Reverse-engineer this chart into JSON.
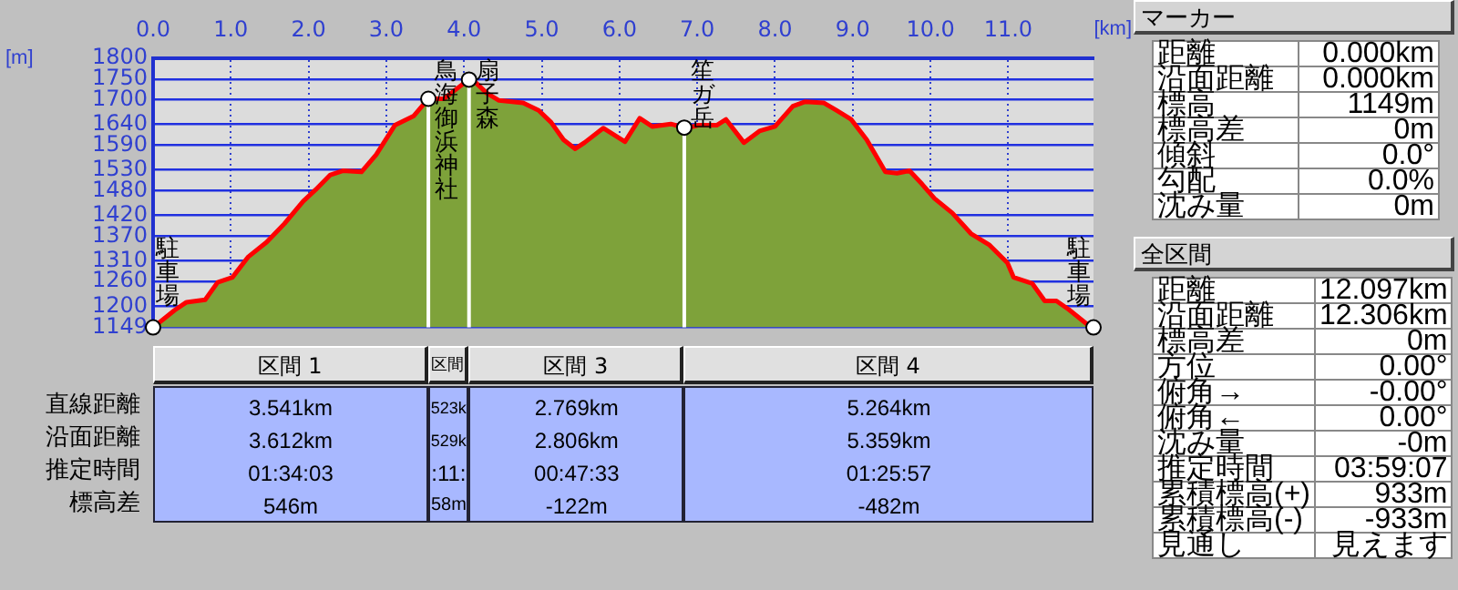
{
  "chart_data": [
    {
      "type": "area",
      "xlabel": "[km]",
      "ylabel": "[m]",
      "color": "#7ea23a",
      "x": [
        0,
        0.28,
        0.43,
        0.67,
        0.83,
        1.02,
        1.22,
        1.46,
        1.69,
        1.93,
        2.09,
        2.28,
        2.44,
        2.68,
        2.87,
        3.11,
        3.35,
        3.54,
        3.74,
        3.98,
        4.09,
        4.29,
        4.45,
        4.76,
        4.96,
        5.12,
        5.28,
        5.43,
        5.55,
        5.79,
        6.07,
        6.26,
        6.42,
        6.66,
        6.86,
        7.01,
        7.25,
        7.37,
        7.6,
        7.8,
        8.0,
        8.23,
        8.39,
        8.63,
        8.79,
        8.98,
        9.18,
        9.42,
        9.57,
        9.73,
        9.89,
        10.05,
        10.28,
        10.52,
        10.76,
        10.99,
        11.07,
        11.31,
        11.47,
        11.62,
        11.78,
        12.02,
        12.097
      ],
      "values": [
        1149,
        1191,
        1210,
        1216,
        1258,
        1270,
        1319,
        1355,
        1400,
        1454,
        1482,
        1518,
        1528,
        1525,
        1567,
        1638,
        1660,
        1702,
        1702,
        1737,
        1752,
        1716,
        1698,
        1692,
        1674,
        1645,
        1603,
        1581,
        1596,
        1631,
        1598,
        1655,
        1635,
        1641,
        1631,
        1638,
        1638,
        1652,
        1596,
        1624,
        1635,
        1684,
        1695,
        1692,
        1674,
        1652,
        1603,
        1525,
        1522,
        1528,
        1496,
        1461,
        1426,
        1376,
        1348,
        1305,
        1270,
        1255,
        1213,
        1213,
        1192,
        1156,
        1149
      ],
      "xlim": [
        0,
        12.097
      ],
      "xticks": [
        {
          "value": 0,
          "label": "0.0"
        },
        {
          "value": 1,
          "label": "1.0"
        },
        {
          "value": 2,
          "label": "2.0"
        },
        {
          "value": 3,
          "label": "3.0"
        },
        {
          "value": 4,
          "label": "4.0"
        },
        {
          "value": 5,
          "label": "5.0"
        },
        {
          "value": 6,
          "label": "6.0"
        },
        {
          "value": 7,
          "label": "7.0"
        },
        {
          "value": 8,
          "label": "8.0"
        },
        {
          "value": 9,
          "label": "9.0"
        },
        {
          "value": 10,
          "label": "10.0"
        },
        {
          "value": 11,
          "label": "11.0"
        }
      ],
      "ylim": [
        1149,
        1800
      ],
      "yticks": [
        1149,
        1200,
        1260,
        1310,
        1370,
        1420,
        1480,
        1530,
        1590,
        1640,
        1700,
        1750,
        1800
      ],
      "grid": true,
      "legend": false,
      "ref_lines": [
        {
          "axis": "x",
          "value": 3.541,
          "label": "鳥海御浜神社",
          "color": "#ffffff"
        },
        {
          "axis": "x",
          "value": 4.064,
          "label": "扇子森",
          "color": "#ffffff"
        },
        {
          "axis": "x",
          "value": 6.833,
          "label": "笙ガ岳",
          "color": "#ffffff"
        }
      ],
      "annotations": [
        {
          "text": "駐車場",
          "x": 0,
          "y": 1149
        },
        {
          "text": "駐車場",
          "x": 12.097,
          "y": 1149
        }
      ]
    },
    {
      "type": "other",
      "categories": [
        "区間 1",
        "区間",
        "区間 3",
        "区間 4"
      ],
      "y_categories": [
        "直線距離",
        "沿面距離",
        "推定時間",
        "標高差"
      ],
      "cell_labels": [
        [
          "3.541km",
          "523k",
          "2.769km",
          "5.264km"
        ],
        [
          "3.612km",
          "529k",
          "2.806km",
          "5.359km"
        ],
        [
          "01:34:03",
          ":11:",
          "00:47:33",
          "01:25:57"
        ],
        [
          "546m",
          "58m",
          "-122m",
          "-482m"
        ]
      ]
    },
    {
      "type": "other",
      "title": "マーカー",
      "y_categories": [
        "距離",
        "沿面距離",
        "標高",
        "標高差",
        "傾斜",
        "勾配",
        "沈み量"
      ],
      "cell_labels": [
        [
          "0.000km"
        ],
        [
          "0.000km"
        ],
        [
          "1149m"
        ],
        [
          "0m"
        ],
        [
          "0.0°"
        ],
        [
          "0.0%"
        ],
        [
          "0m"
        ]
      ]
    },
    {
      "type": "other",
      "title": "全区間",
      "y_categories": [
        "距離",
        "沿面距離",
        "標高差",
        "方位",
        "俯角→",
        "俯角←",
        "沈み量",
        "推定時間",
        "累積標高(+)",
        "累積標高(-)",
        "見通し"
      ],
      "cell_labels": [
        [
          "12.097km"
        ],
        [
          "12.306km"
        ],
        [
          "0m"
        ],
        [
          "0.00°"
        ],
        [
          "-0.00°"
        ],
        [
          "0.00°"
        ],
        [
          "-0m"
        ],
        [
          "03:59:07"
        ],
        [
          "933m"
        ],
        [
          "-933m"
        ],
        [
          "見えます"
        ]
      ]
    }
  ]
}
